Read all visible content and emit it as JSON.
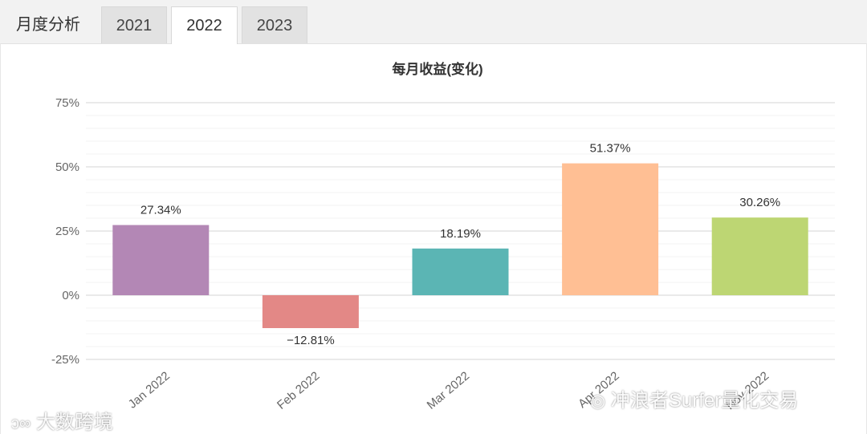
{
  "tabs": {
    "title": "月度分析",
    "items": [
      {
        "label": "2021",
        "active": false
      },
      {
        "label": "2022",
        "active": true
      },
      {
        "label": "2023",
        "active": false
      }
    ]
  },
  "chart_data": {
    "type": "bar",
    "title": "每月收益(变化)",
    "categories": [
      "Jan 2022",
      "Feb 2022",
      "Mar 2022",
      "Apr 2022",
      "Nov 2022"
    ],
    "values": [
      27.34,
      -12.81,
      18.19,
      51.37,
      30.26
    ],
    "value_labels": [
      "27.34%",
      "−12.81%",
      "18.19%",
      "51.37%",
      "30.26%"
    ],
    "colors": [
      "#b387b5",
      "#e38886",
      "#5bb5b4",
      "#ffbf94",
      "#bdd673"
    ],
    "ylim": [
      -25,
      75
    ],
    "yticks": [
      75,
      50,
      25,
      0,
      -25
    ],
    "ytick_labels": [
      "75%",
      "50%",
      "25%",
      "0%",
      "-25%"
    ],
    "grid": true,
    "legend": "none"
  },
  "watermarks": {
    "left": "大数跨境",
    "right": "冲浪者Surfer量化交易"
  }
}
